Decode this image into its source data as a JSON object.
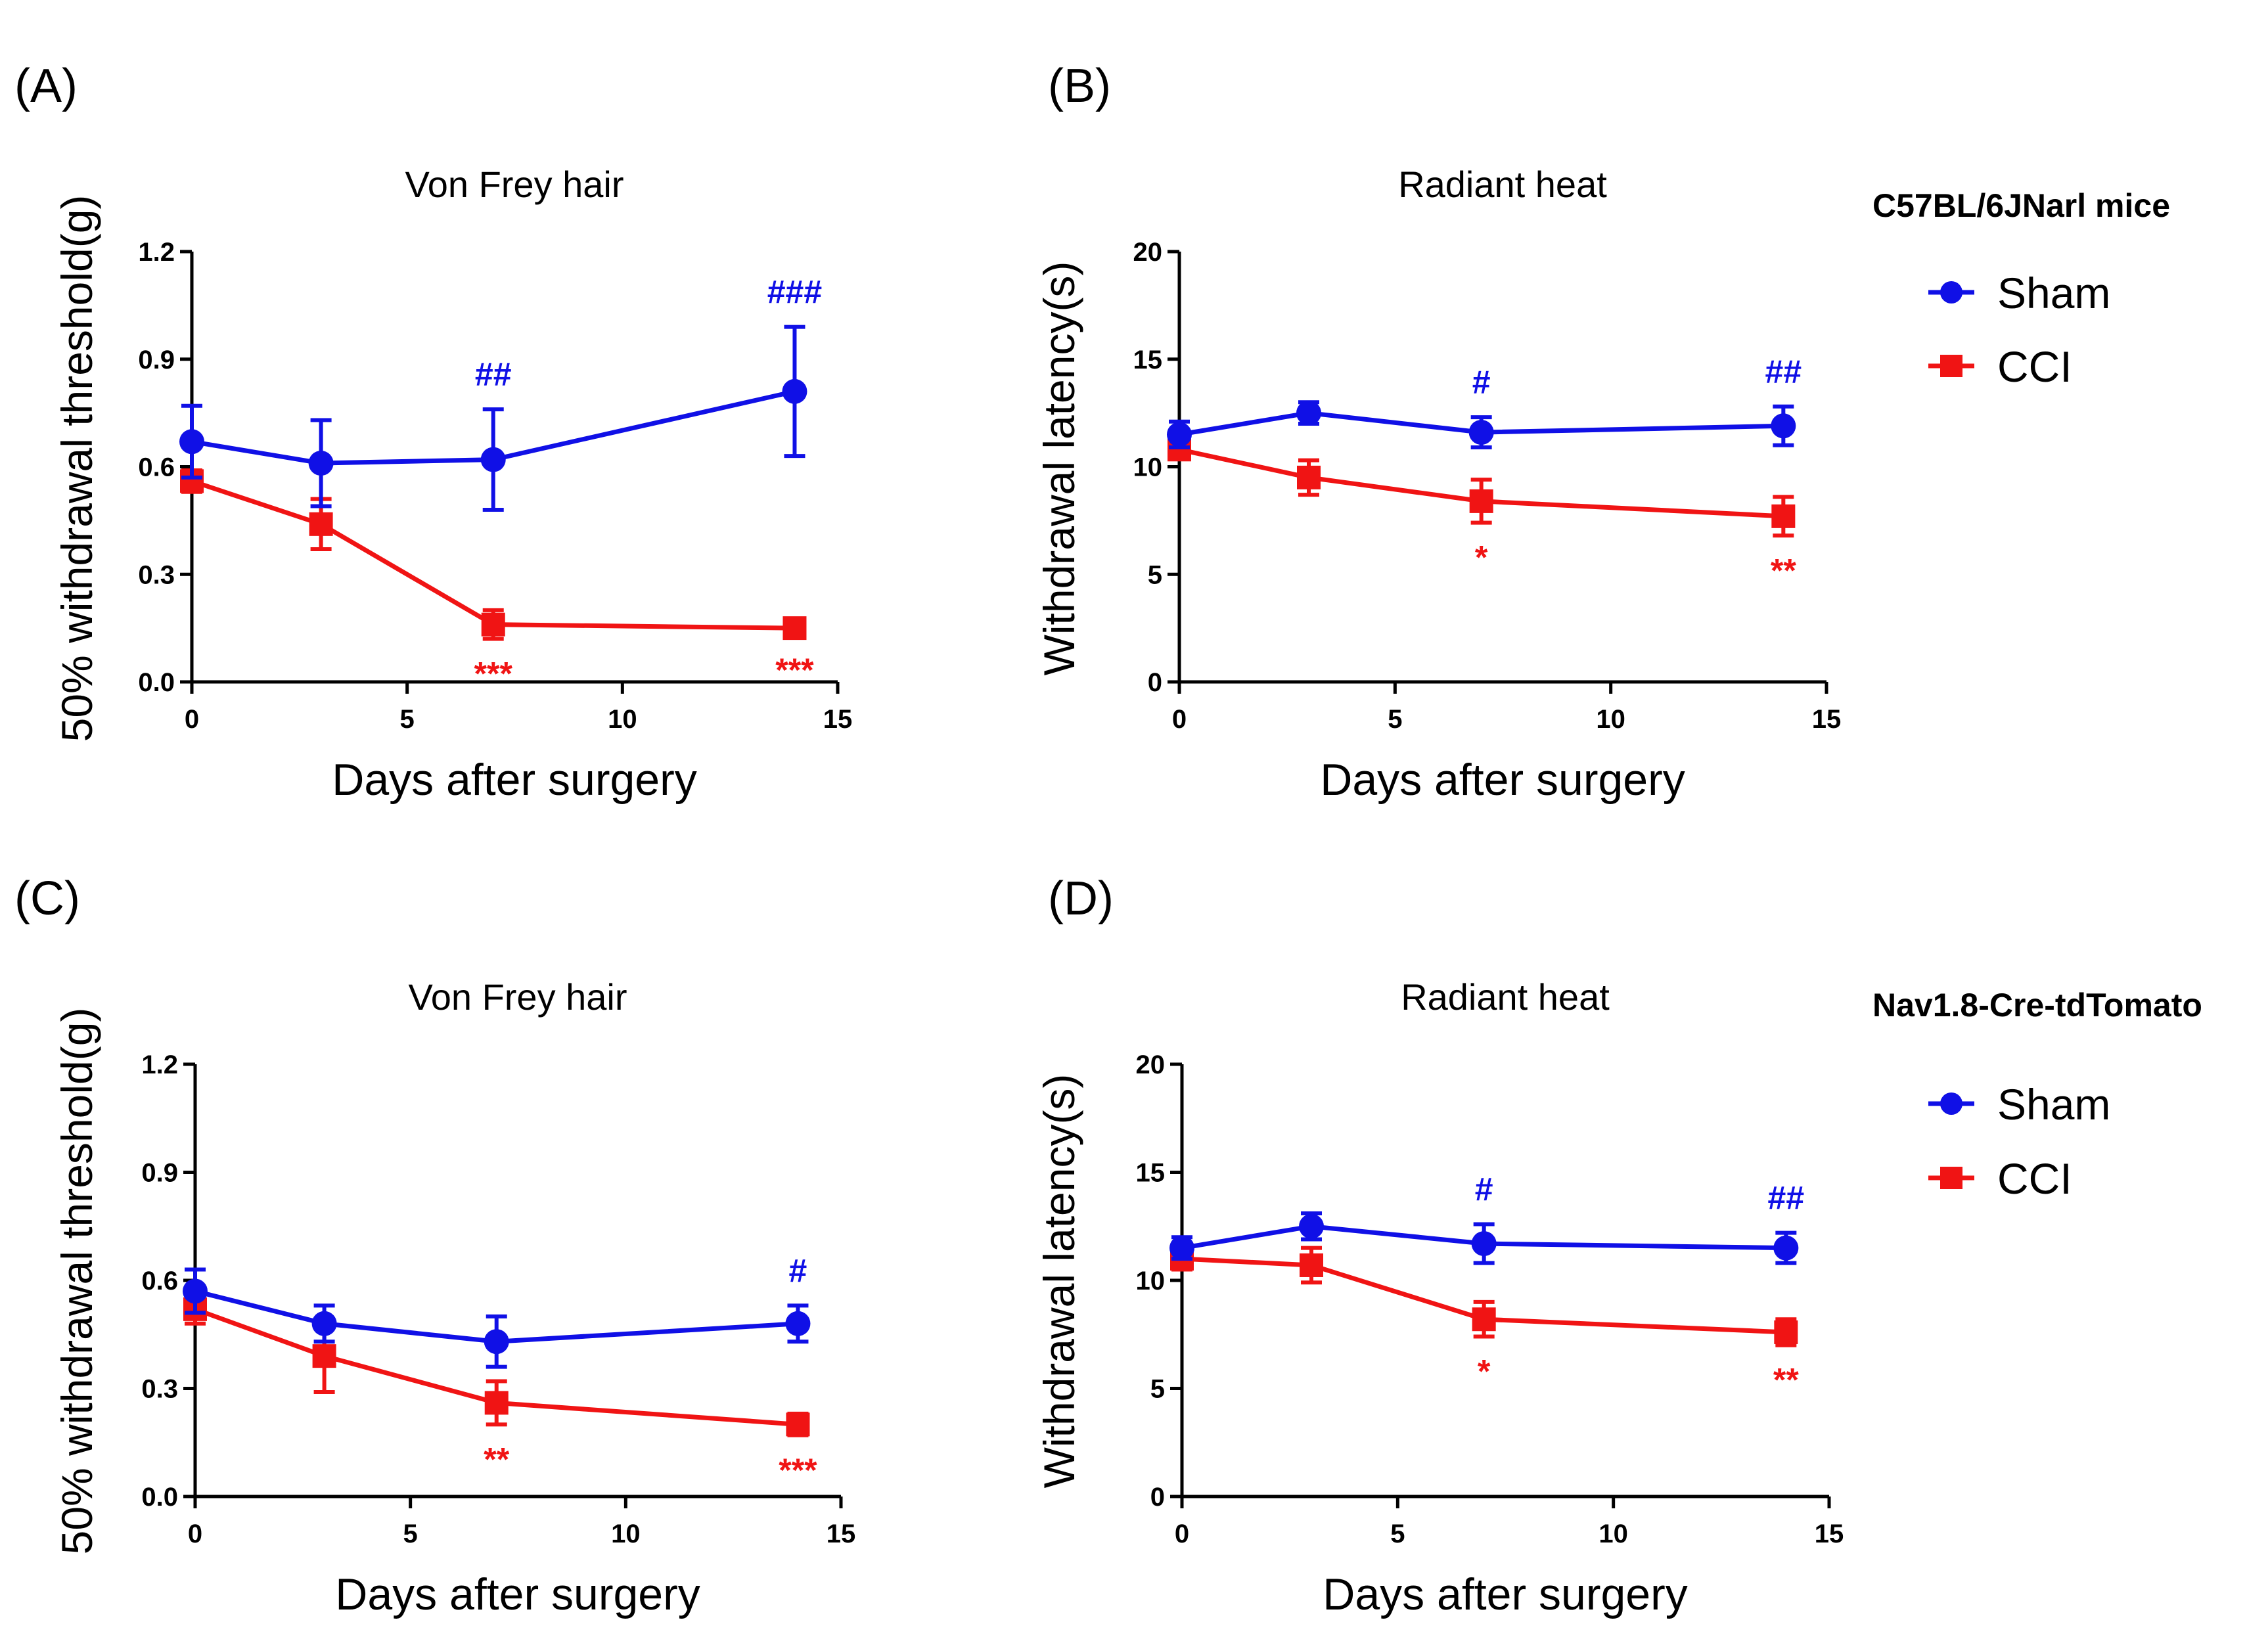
{
  "colors": {
    "sham": "#1010e6",
    "cci": "#f01414"
  },
  "groups": [
    {
      "label": "C57BL/6JNarl mice",
      "legend": [
        {
          "name": "Sham",
          "marker": "circle"
        },
        {
          "name": "CCI",
          "marker": "square"
        }
      ]
    },
    {
      "label": "Nav1.8-Cre-tdTomato",
      "legend": [
        {
          "name": "Sham",
          "marker": "circle"
        },
        {
          "name": "CCI",
          "marker": "square"
        }
      ]
    }
  ],
  "chart_data": [
    {
      "type": "line",
      "panel": "(A)",
      "title": "Von Frey hair",
      "xlabel": "Days after surgery",
      "ylabel": "50% withdrawal threshold(g)",
      "xlim": [
        0,
        15
      ],
      "ylim": [
        0,
        1.2
      ],
      "xticks": [
        "0",
        "5",
        "10",
        "15"
      ],
      "yticks": [
        "0.0",
        "0.3",
        "0.6",
        "0.9",
        "1.2"
      ],
      "x": [
        0,
        3,
        7,
        14
      ],
      "series": [
        {
          "name": "Sham",
          "marker": "circle",
          "values": [
            0.67,
            0.61,
            0.62,
            0.81
          ],
          "errors": [
            0.1,
            0.12,
            0.14,
            0.18
          ]
        },
        {
          "name": "CCI",
          "marker": "square",
          "values": [
            0.56,
            0.44,
            0.16,
            0.15
          ],
          "errors": [
            0.03,
            0.07,
            0.04,
            0.02
          ]
        }
      ],
      "annotations": [
        {
          "text": "##",
          "x": 7,
          "series": "Sham"
        },
        {
          "text": "###",
          "x": 14,
          "series": "Sham"
        },
        {
          "text": "***",
          "x": 7,
          "series": "CCI"
        },
        {
          "text": "***",
          "x": 14,
          "series": "CCI"
        }
      ]
    },
    {
      "type": "line",
      "panel": "(B)",
      "title": "Radiant heat",
      "xlabel": "Days after surgery",
      "ylabel": "Withdrawal latency(s)",
      "xlim": [
        0,
        15
      ],
      "ylim": [
        0,
        20
      ],
      "xticks": [
        "0",
        "5",
        "10",
        "15"
      ],
      "yticks": [
        "0",
        "5",
        "10",
        "15",
        "20"
      ],
      "x": [
        0,
        3,
        7,
        14
      ],
      "series": [
        {
          "name": "Sham",
          "marker": "circle",
          "values": [
            11.5,
            12.5,
            11.6,
            11.9
          ],
          "errors": [
            0.6,
            0.5,
            0.7,
            0.9
          ]
        },
        {
          "name": "CCI",
          "marker": "square",
          "values": [
            10.8,
            9.5,
            8.4,
            7.7
          ],
          "errors": [
            0.4,
            0.8,
            1.0,
            0.9
          ]
        }
      ],
      "annotations": [
        {
          "text": "#",
          "x": 7,
          "series": "Sham"
        },
        {
          "text": "##",
          "x": 14,
          "series": "Sham"
        },
        {
          "text": "*",
          "x": 7,
          "series": "CCI"
        },
        {
          "text": "**",
          "x": 14,
          "series": "CCI"
        }
      ]
    },
    {
      "type": "line",
      "panel": "(C)",
      "title": "Von Frey hair",
      "xlabel": "Days after surgery",
      "ylabel": "50% withdrawal threshold(g)",
      "xlim": [
        0,
        15
      ],
      "ylim": [
        0,
        1.2
      ],
      "xticks": [
        "0",
        "5",
        "10",
        "15"
      ],
      "yticks": [
        "0.0",
        "0.3",
        "0.6",
        "0.9",
        "1.2"
      ],
      "x": [
        0,
        3,
        7,
        14
      ],
      "series": [
        {
          "name": "Sham",
          "marker": "circle",
          "values": [
            0.57,
            0.48,
            0.43,
            0.48
          ],
          "errors": [
            0.06,
            0.05,
            0.07,
            0.05
          ]
        },
        {
          "name": "CCI",
          "marker": "square",
          "values": [
            0.52,
            0.39,
            0.26,
            0.2
          ],
          "errors": [
            0.04,
            0.1,
            0.06,
            0.03
          ]
        }
      ],
      "annotations": [
        {
          "text": "#",
          "x": 14,
          "series": "Sham"
        },
        {
          "text": "**",
          "x": 7,
          "series": "CCI"
        },
        {
          "text": "***",
          "x": 14,
          "series": "CCI"
        }
      ]
    },
    {
      "type": "line",
      "panel": "(D)",
      "title": "Radiant heat",
      "xlabel": "Days after surgery",
      "ylabel": "Withdrawal latency(s)",
      "xlim": [
        0,
        15
      ],
      "ylim": [
        0,
        20
      ],
      "xticks": [
        "0",
        "5",
        "10",
        "15"
      ],
      "yticks": [
        "0",
        "5",
        "10",
        "15",
        "20"
      ],
      "x": [
        0,
        3,
        7,
        14
      ],
      "series": [
        {
          "name": "Sham",
          "marker": "circle",
          "values": [
            11.5,
            12.5,
            11.7,
            11.5
          ],
          "errors": [
            0.5,
            0.6,
            0.9,
            0.7
          ]
        },
        {
          "name": "CCI",
          "marker": "square",
          "values": [
            11.0,
            10.7,
            8.2,
            7.6
          ],
          "errors": [
            0.5,
            0.8,
            0.8,
            0.6
          ]
        }
      ],
      "annotations": [
        {
          "text": "#",
          "x": 7,
          "series": "Sham"
        },
        {
          "text": "##",
          "x": 14,
          "series": "Sham"
        },
        {
          "text": "*",
          "x": 7,
          "series": "CCI"
        },
        {
          "text": "**",
          "x": 14,
          "series": "CCI"
        }
      ]
    }
  ]
}
